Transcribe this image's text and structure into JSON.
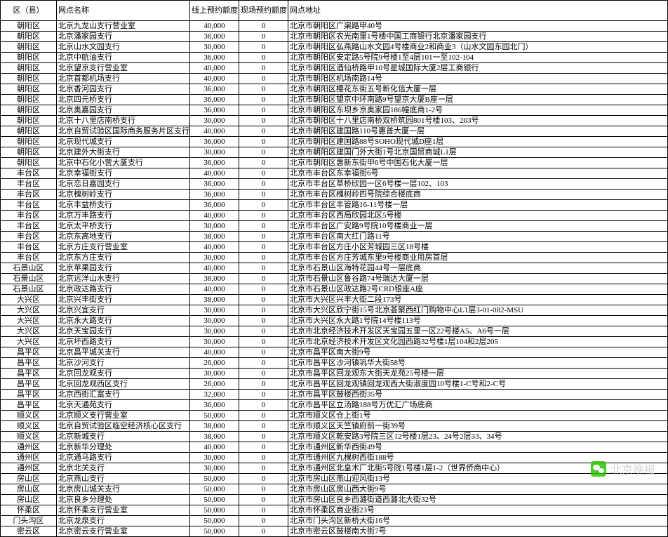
{
  "header": {
    "district": "区（县）",
    "branch": "网点名称",
    "online": "线上预约额度（枚）",
    "onsite": "现场预约额度（枚）",
    "address": "网点地址"
  },
  "watermark": "北京晚报",
  "rows": [
    {
      "d": "朝阳区",
      "b": "北京九龙山支行营业室",
      "on": "40,000",
      "off": "0",
      "a": "北京市朝阳区广渠路甲40号"
    },
    {
      "d": "朝阳区",
      "b": "北京潘家园支行",
      "on": "36,000",
      "off": "0",
      "a": "北京市朝阳区农光南里1号楼中国工商银行北京潘家园支行"
    },
    {
      "d": "朝阳区",
      "b": "北京山水文园支行",
      "on": "30,000",
      "off": "0",
      "a": "北京市朝阳区弘燕路山水文园4号楼商业2和商业3（山水文园东园北门）"
    },
    {
      "d": "朝阳区",
      "b": "北京中航油支行",
      "on": "36,000",
      "off": "0",
      "a": "北京市朝阳区安定路5号院9号楼1至4层101一至102-104"
    },
    {
      "d": "朝阳区",
      "b": "北京望京支行营业室",
      "on": "40,000",
      "off": "0",
      "a": "北京市朝阳区酒仙桥路甲10号星城国际大厦2层工商银行"
    },
    {
      "d": "朝阳区",
      "b": "北京首都机场支行",
      "on": "40,000",
      "off": "0",
      "a": "北京市朝阳区机场南路14号"
    },
    {
      "d": "朝阳区",
      "b": "北京香河园支行",
      "on": "36,000",
      "off": "0",
      "a": "北京市朝阳区樱花东街五号新化信大厦一层"
    },
    {
      "d": "朝阳区",
      "b": "北京四元桥支行",
      "on": "36,000",
      "off": "0",
      "a": "北京市朝阳区望京中环南路9号望京大厦B座一层"
    },
    {
      "d": "朝阳区",
      "b": "北京奥嘉园支行",
      "on": "36,000",
      "off": "0",
      "a": "北京市朝阳区东坝乡京奥家园186幢底商1-2号"
    },
    {
      "d": "朝阳区",
      "b": "北京十八里店南桥支行",
      "on": "30,000",
      "off": "0",
      "a": "北京市朝阳区十八里店南桥双桥筑园801号楼103、203号"
    },
    {
      "d": "朝阳区",
      "b": "北京自贸试验区国际商务服务片区支行营业室",
      "on": "40,000",
      "off": "0",
      "a": "北京市朝阳区建国路110号惠普大厦一层"
    },
    {
      "d": "朝阳区",
      "b": "北京现代城支行",
      "on": "36,000",
      "off": "0",
      "a": "北京市朝阳区建国路88号SOHO现代城D座1层"
    },
    {
      "d": "朝阳区",
      "b": "北京建外大街支行",
      "on": "30,000",
      "off": "0",
      "a": "北京市朝阳区建国门外大街1号北京国贸商城L1层"
    },
    {
      "d": "朝阳区",
      "b": "北京中石化小营大厦支行",
      "on": "36,000",
      "off": "0",
      "a": "北京市朝阳区惠新东街甲6号中国石化大厦一层"
    },
    {
      "d": "丰台区",
      "b": "北京幸福街支行",
      "on": "40,000",
      "off": "0",
      "a": "北京市丰台区东幸福街6号"
    },
    {
      "d": "丰台区",
      "b": "北京恋日嘉园支行",
      "on": "36,000",
      "off": "0",
      "a": "北京市丰台区草桥欣园一区6号楼一层102、103"
    },
    {
      "d": "丰台区",
      "b": "北京槐树岭支行",
      "on": "36,000",
      "off": "0",
      "a": "北京市丰台区槐树岭四号院综合楼底商"
    },
    {
      "d": "丰台区",
      "b": "北京丰益桥支行",
      "on": "36,000",
      "off": "0",
      "a": "北京市丰台区丰管路16-11号楼一层"
    },
    {
      "d": "丰台区",
      "b": "北京万丰路支行",
      "on": "40,000",
      "off": "0",
      "a": "北京市丰台区西局欣园北区5号楼"
    },
    {
      "d": "丰台区",
      "b": "北京太平桥支行",
      "on": "30,000",
      "off": "0",
      "a": "北京市丰台区广安路9号院10号楼商业一层"
    },
    {
      "d": "丰台区",
      "b": "北京东高地支行",
      "on": "38,000",
      "off": "0",
      "a": "北京市丰台区南大红门路11号"
    },
    {
      "d": "丰台区",
      "b": "北京方庄支行营业室",
      "on": "40,000",
      "off": "0",
      "a": "北京市丰台区方庄小区芳城园三区18号楼"
    },
    {
      "d": "丰台区",
      "b": "北京东方庄支行",
      "on": "30,000",
      "off": "0",
      "a": "北京市丰台区方庄芳城东里9号楼商业用房首层"
    },
    {
      "d": "石景山区",
      "b": "北京苹果园支行",
      "on": "40,000",
      "off": "0",
      "a": "北京市石景山区海特花园44号一层底商"
    },
    {
      "d": "石景山区",
      "b": "北京远洋山水支行",
      "on": "38,000",
      "off": "0",
      "a": "北京市石景山区鲁谷路74号瑞达大厦一层"
    },
    {
      "d": "石景山区",
      "b": "北京政达路支行",
      "on": "40,000",
      "off": "0",
      "a": "北京市石景山区政达路2号CRD银座A座"
    },
    {
      "d": "大兴区",
      "b": "北京兴丰街支行",
      "on": "38,000",
      "off": "0",
      "a": "北京市大兴区兴丰大街二段173号"
    },
    {
      "d": "大兴区",
      "b": "北京兴宜支行",
      "on": "30,000",
      "off": "0",
      "a": "北京市大兴区欣宁街15号北京荟聚西红门购物中心L1层3-01-082-MSU"
    },
    {
      "d": "大兴区",
      "b": "北京永大路支行",
      "on": "30,000",
      "off": "0",
      "a": "北京市大兴区永大路1号院14号楼113号"
    },
    {
      "d": "大兴区",
      "b": "北京天宝园支行",
      "on": "30,000",
      "off": "0",
      "a": "北京市北京经济技术开发区天宝园五里一区22号楼A5、A6号一层"
    },
    {
      "d": "大兴区",
      "b": "北京坏西路支行",
      "on": "30,000",
      "off": "0",
      "a": "北京市北京经济技术开发区文化园西路32号楼1层104和2层205"
    },
    {
      "d": "昌平区",
      "b": "北京昌平城关支行",
      "on": "40,000",
      "off": "0",
      "a": "北京市昌平区南大街9号"
    },
    {
      "d": "昌平区",
      "b": "北京沙河支行",
      "on": "26,000",
      "off": "0",
      "a": "北京市昌平区沙河镇巩华大街58号"
    },
    {
      "d": "昌平区",
      "b": "北京回龙观支行",
      "on": "30,000",
      "off": "0",
      "a": "北京市昌平区回龙观东大街天龙苑25号楼一层"
    },
    {
      "d": "昌平区",
      "b": "北京回龙观西区支行",
      "on": "26,000",
      "off": "0",
      "a": "北京市昌平区回龙观镇回龙观西大街淑度园10号楼1-C号和2-C号"
    },
    {
      "d": "昌平区",
      "b": "北京西街汇富支行",
      "on": "32,000",
      "off": "0",
      "a": "北京市昌平区鼓楼西街35号"
    },
    {
      "d": "昌平区",
      "b": "北京天通苑支行",
      "on": "36,000",
      "off": "0",
      "a": "北京市昌平区立汤路188号万优汇广场底商"
    },
    {
      "d": "顺义区",
      "b": "北京顺义支行营业室",
      "on": "50,000",
      "off": "0",
      "a": "北京市顺义区仓上街1号"
    },
    {
      "d": "顺义区",
      "b": "北京自贸试验区临空经济核心区支行",
      "on": "38,000",
      "off": "0",
      "a": "北京市顺义区天竺镇府前一街39号"
    },
    {
      "d": "顺义区",
      "b": "北京新城支行",
      "on": "38,000",
      "off": "0",
      "a": "北京市顺义区乾安路3号院三区12号楼1层23、24号2层33、34号"
    },
    {
      "d": "通州区",
      "b": "北京新华分理处",
      "on": "40,000",
      "off": "0",
      "a": "北京市通州区新华西街49号"
    },
    {
      "d": "通州区",
      "b": "北京通马路支行",
      "on": "30,000",
      "off": "0",
      "a": "北京市通州区九棵树西街188号"
    },
    {
      "d": "通州区",
      "b": "北京北关支行",
      "on": "30,000",
      "off": "0",
      "a": "北京市通州区北皇木厂北街5号院1号楼1层1-2（世界侨商中心）"
    },
    {
      "d": "房山区",
      "b": "北京燕山支行",
      "on": "50,000",
      "off": "0",
      "a": "北京市房山区燕山迎风街13号"
    },
    {
      "d": "房山区",
      "b": "北京房山城关支行",
      "on": "50,000",
      "off": "0",
      "a": "北京市房山区房山西大街9号"
    },
    {
      "d": "房山区",
      "b": "北京良乡分理处",
      "on": "50,000",
      "off": "0",
      "a": "北京市房山区良乡西潞街道西潞北大街32号"
    },
    {
      "d": "怀柔区",
      "b": "北京怀柔支行营业室",
      "on": "50,000",
      "off": "0",
      "a": "北京市怀柔区商业街23号"
    },
    {
      "d": "门头沟区",
      "b": "北京龙泉支行",
      "on": "50,000",
      "off": "0",
      "a": "北京市门头沟区新桥大街16号"
    },
    {
      "d": "密云区",
      "b": "北京密云支行营业室",
      "on": "50,000",
      "off": "0",
      "a": "北京市密云区鼓楼南大街7号"
    }
  ]
}
